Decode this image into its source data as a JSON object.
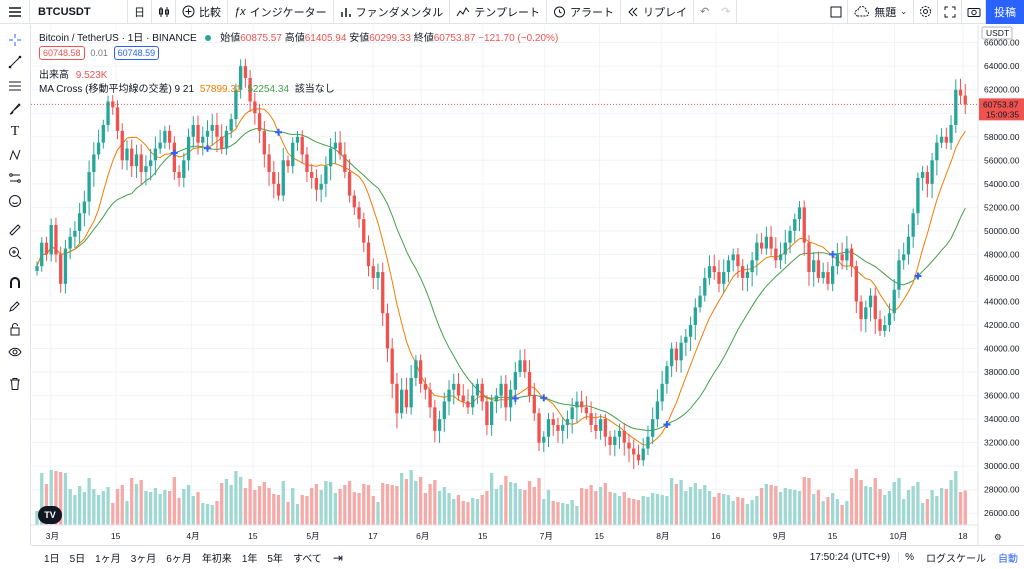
{
  "toolbar": {
    "symbol": "BTCUSDT",
    "interval": "日",
    "compare": "比較",
    "indicators": "インジケーター",
    "fundamentals": "ファンダメンタル",
    "templates": "テンプレート",
    "alert": "アラート",
    "replay": "リプレイ",
    "layout_name": "無題",
    "publish": "投稿"
  },
  "legend": {
    "title": "Bitcoin / TetherUS · 1日 · BINANCE",
    "open_label": "始値",
    "open": "60875.57",
    "high_label": "高値",
    "high": "61405.94",
    "low_label": "安値",
    "low": "60299.33",
    "close_label": "終値",
    "close": "60753.87",
    "change": "−121.70 (−0.20%)",
    "sell": "60748.58",
    "spread": "0.01",
    "buy": "60748.59",
    "volume_label": "出来高",
    "volume": "9.523K",
    "ma_label": "MA Cross (移動平均線の交差) 9 21",
    "ma_fast": "57899.31",
    "ma_slow": "52254.34",
    "ma_cross": "該当なし"
  },
  "price_axis": {
    "currency": "USDT",
    "ticks": [
      "66000.00",
      "64000.00",
      "62000.00",
      "60000.00",
      "58000.00",
      "56000.00",
      "54000.00",
      "52000.00",
      "50000.00",
      "48000.00",
      "46000.00",
      "44000.00",
      "42000.00",
      "40000.00",
      "38000.00",
      "36000.00",
      "34000.00",
      "32000.00",
      "30000.00",
      "28000.00",
      "26000.00"
    ],
    "last_price": "60753.87",
    "countdown": "15:09:35"
  },
  "time_axis": {
    "ticks": [
      "3月",
      "15",
      "4月",
      "15",
      "5月",
      "17",
      "6月",
      "15",
      "7月",
      "15",
      "8月",
      "16",
      "9月",
      "15",
      "10月",
      "18"
    ]
  },
  "ranges": [
    "1日",
    "5日",
    "1ヶ月",
    "3ヶ月",
    "6ヶ月",
    "年初来",
    "1年",
    "5年",
    "すべて"
  ],
  "status": {
    "clock": "17:50:24 (UTC+9)",
    "percent": "%",
    "log": "ログスケール",
    "auto": "自動"
  },
  "chart_data": {
    "type": "candlestick",
    "symbol": "BTCUSDT",
    "ylim": [
      25000,
      67500
    ],
    "x_labels": [
      "3月",
      "15",
      "4月",
      "15",
      "5月",
      "17",
      "6月",
      "15",
      "7月",
      "15",
      "8月",
      "16",
      "9月",
      "15",
      "10月",
      "18"
    ],
    "series": [
      {
        "name": "BTCUSDT",
        "closes": [
          47000,
          49000,
          48000,
          50500,
          48000,
          45500,
          48500,
          49500,
          50000,
          51500,
          52500,
          55000,
          56500,
          57500,
          59000,
          61000,
          60500,
          58500,
          56000,
          57000,
          55500,
          56500,
          55000,
          55500,
          56000,
          57000,
          57500,
          58500,
          57500,
          55000,
          54500,
          56000,
          58000,
          59000,
          57500,
          58000,
          58500,
          59000,
          58000,
          57000,
          58500,
          59500,
          62000,
          64000,
          63000,
          61000,
          60000,
          58500,
          56500,
          55000,
          54000,
          53000,
          56000,
          55500,
          57500,
          58000,
          56500,
          55000,
          54500,
          53500,
          54000,
          55500,
          57000,
          57500,
          56500,
          55000,
          53000,
          52000,
          51000,
          49000,
          47000,
          46000,
          46500,
          43000,
          40000,
          37000,
          34500,
          36500,
          35000,
          37500,
          39000,
          37000,
          36500,
          35000,
          33000,
          34000,
          35500,
          36500,
          37000,
          36000,
          35500,
          35000,
          36000,
          37000,
          35500,
          33500,
          35500,
          36000,
          37000,
          35000,
          36500,
          38000,
          39000,
          38000,
          36000,
          34500,
          32000,
          32500,
          34000,
          33500,
          33000,
          33500,
          34000,
          35000,
          35500,
          35000,
          34500,
          33500,
          33000,
          34000,
          32500,
          31800,
          32500,
          33000,
          32000,
          31500,
          31000,
          30500,
          31500,
          32500,
          34000,
          35500,
          37000,
          38500,
          40000,
          39000,
          40500,
          41000,
          42000,
          43500,
          44500,
          46000,
          47000,
          46500,
          45500,
          46500,
          47500,
          48000,
          47000,
          46000,
          46500,
          47500,
          49000,
          48500,
          49500,
          48500,
          47500,
          48000,
          49000,
          50000,
          51000,
          52000,
          49000,
          46500,
          47500,
          46000,
          46500,
          45500,
          47000,
          48000,
          47500,
          48500,
          47000,
          44000,
          42500,
          43500,
          44500,
          42500,
          41500,
          42000,
          43000,
          45000,
          47500,
          48000,
          49500,
          51500,
          54500,
          55000,
          54000,
          56000,
          57500,
          58000,
          57500,
          59000,
          62000,
          61500,
          60750
        ]
      }
    ]
  }
}
